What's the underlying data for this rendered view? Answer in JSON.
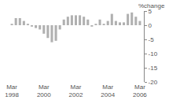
{
  "chart_data": {
    "type": "bar",
    "y_label": "%change",
    "categories": [
      "Mar 1998",
      null,
      null,
      null,
      null,
      null,
      null,
      null,
      "Mar 2000",
      null,
      null,
      null,
      null,
      null,
      null,
      null,
      "Mar 2002",
      null,
      null,
      null,
      null,
      null,
      null,
      null,
      "Mar 2004",
      null,
      null,
      null,
      null,
      null,
      null,
      null,
      "Mar 2006"
    ],
    "values": [
      0.5,
      2.5,
      2.5,
      1.5,
      0.5,
      -0.5,
      -1,
      -1.5,
      -3,
      -4.5,
      -6,
      -5.5,
      -1.5,
      2,
      3,
      3.5,
      3.5,
      3.5,
      3,
      2,
      -0.5,
      0.5,
      2,
      0.5,
      1.5,
      4,
      1.5,
      1,
      1,
      4,
      4.5,
      3,
      1.5
    ],
    "color": "#b0b0b0",
    "ylim": [
      -20,
      5
    ],
    "yticks": [
      5,
      0,
      -5,
      -10,
      -15,
      -20
    ],
    "grid": false
  }
}
